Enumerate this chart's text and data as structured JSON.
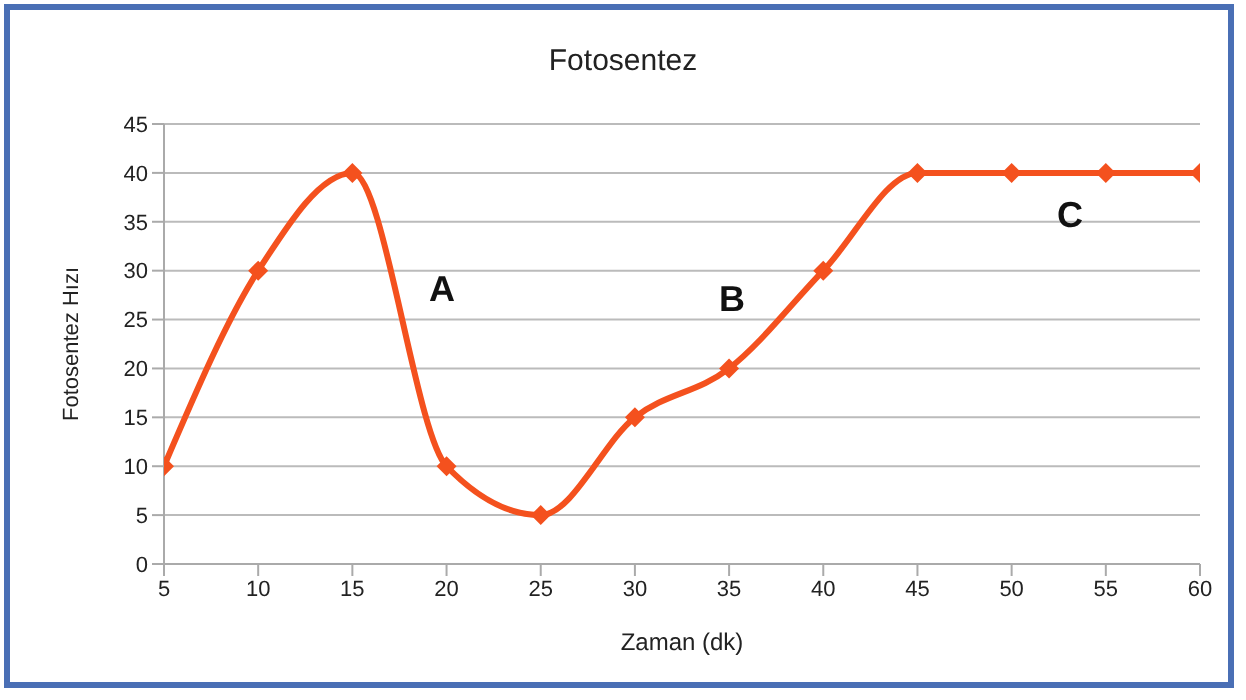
{
  "chart_data": {
    "type": "line",
    "title": "Fotosentez",
    "xlabel": "Zaman (dk)",
    "ylabel": "Fotosentez Hızı",
    "x": [
      5,
      10,
      15,
      20,
      25,
      30,
      35,
      40,
      45,
      50,
      55,
      60
    ],
    "series": [
      {
        "color": "#f4511e",
        "values": [
          10,
          30,
          40,
          10,
          5,
          15,
          20,
          30,
          40,
          40,
          40,
          40
        ]
      }
    ],
    "xlim": [
      5,
      60
    ],
    "xticks": [
      5,
      10,
      15,
      20,
      25,
      30,
      35,
      40,
      45,
      50,
      55,
      60
    ],
    "ylim": [
      0,
      45
    ],
    "yticks": [
      0,
      5,
      10,
      15,
      20,
      25,
      30,
      35,
      40,
      45
    ],
    "grid": "y",
    "marker": "diamond",
    "line_style": "solid",
    "annotations": [
      "A",
      "B",
      "C"
    ]
  }
}
